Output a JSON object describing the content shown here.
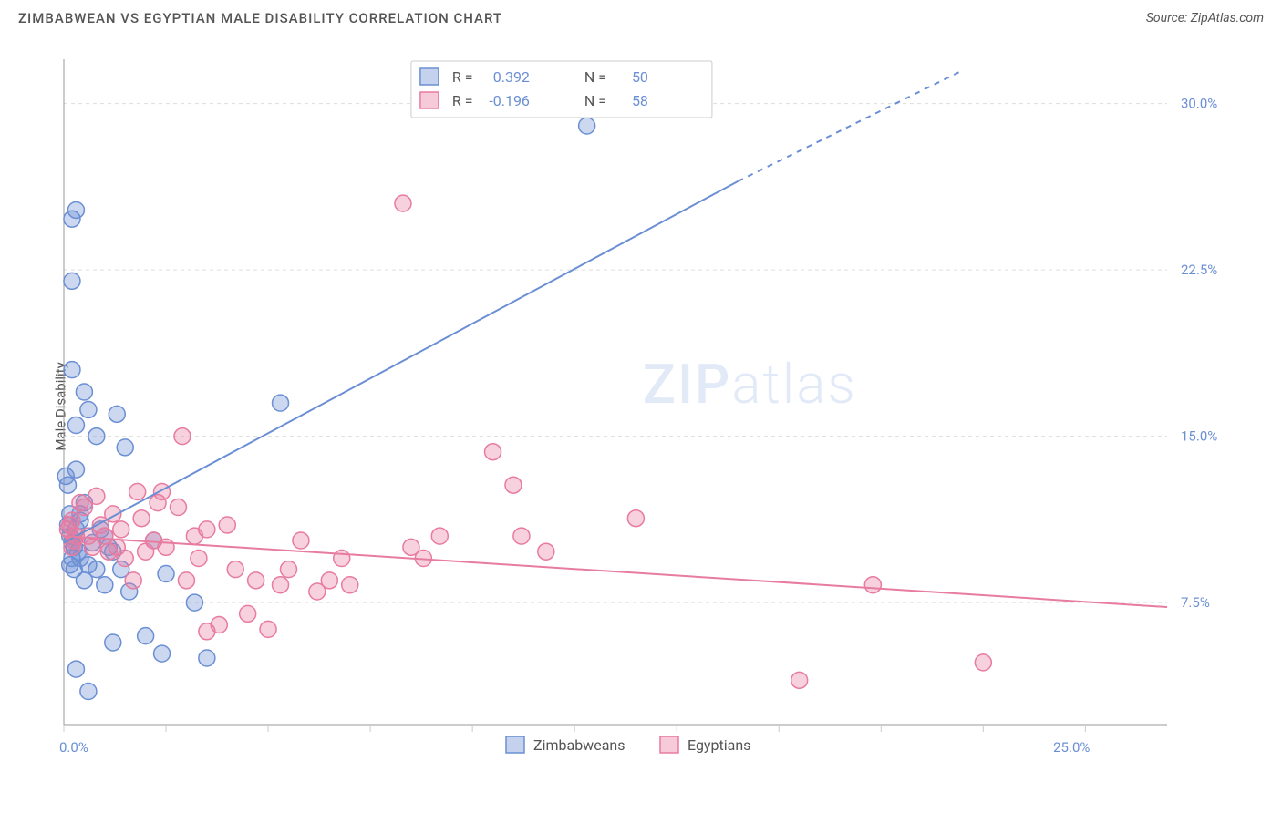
{
  "title": "ZIMBABWEAN VS EGYPTIAN MALE DISABILITY CORRELATION CHART",
  "source": "Source: ZipAtlas.com",
  "watermark": "ZIPatlas",
  "ylabel": "Male Disability",
  "chart": {
    "type": "scatter",
    "xlim": [
      0,
      27
    ],
    "ylim": [
      2,
      32
    ],
    "x_ticks": [
      0,
      2.5,
      5,
      7.5,
      10,
      12.5,
      15,
      17.5,
      20,
      22.5,
      25
    ],
    "x_tick_labels": {
      "0": "0.0%",
      "25": "25.0%"
    },
    "y_ticks": [
      7.5,
      15.0,
      22.5,
      30.0
    ],
    "y_tick_labels": [
      "7.5%",
      "15.0%",
      "22.5%",
      "30.0%"
    ],
    "background_color": "#ffffff",
    "grid_color": "#dddddd",
    "axis_color": "#999999",
    "tick_label_color": "#6b8fd4",
    "marker_radius": 9,
    "marker_stroke_width": 1.5,
    "marker_fill_opacity": 0.35,
    "series": [
      {
        "name": "Zimbabweans",
        "color": "#6b8fd4",
        "R": "0.392",
        "N": "50",
        "trend": {
          "x1": 0,
          "y1": 10.2,
          "x2": 16.5,
          "y2": 26.5,
          "extrap_x2": 22,
          "extrap_y2": 31.5
        },
        "points": [
          [
            0.1,
            11.0
          ],
          [
            0.2,
            10.2
          ],
          [
            0.15,
            10.5
          ],
          [
            0.3,
            10.8
          ],
          [
            0.4,
            11.2
          ],
          [
            0.35,
            9.8
          ],
          [
            0.25,
            10.3
          ],
          [
            0.1,
            12.8
          ],
          [
            0.05,
            13.2
          ],
          [
            0.2,
            18.0
          ],
          [
            0.3,
            15.5
          ],
          [
            0.5,
            17.0
          ],
          [
            0.6,
            16.2
          ],
          [
            0.8,
            15.0
          ],
          [
            1.3,
            16.0
          ],
          [
            1.5,
            14.5
          ],
          [
            0.2,
            24.8
          ],
          [
            0.3,
            25.2
          ],
          [
            0.2,
            22.0
          ],
          [
            0.15,
            9.2
          ],
          [
            0.25,
            9.0
          ],
          [
            0.4,
            9.5
          ],
          [
            0.6,
            9.2
          ],
          [
            0.8,
            9.0
          ],
          [
            0.5,
            8.5
          ],
          [
            1.0,
            8.3
          ],
          [
            1.2,
            9.8
          ],
          [
            1.4,
            9.0
          ],
          [
            1.0,
            10.5
          ],
          [
            1.1,
            10.0
          ],
          [
            0.9,
            10.8
          ],
          [
            0.7,
            10.2
          ],
          [
            1.6,
            8.0
          ],
          [
            2.0,
            6.0
          ],
          [
            2.4,
            5.2
          ],
          [
            2.5,
            8.8
          ],
          [
            3.2,
            7.5
          ],
          [
            3.5,
            5.0
          ],
          [
            0.6,
            3.5
          ],
          [
            1.2,
            5.7
          ],
          [
            2.2,
            10.3
          ],
          [
            0.15,
            11.5
          ],
          [
            0.3,
            13.5
          ],
          [
            0.5,
            12.0
          ],
          [
            0.3,
            4.5
          ],
          [
            5.3,
            16.5
          ],
          [
            12.8,
            29.0
          ],
          [
            0.4,
            11.5
          ],
          [
            0.2,
            9.5
          ],
          [
            0.25,
            10.0
          ]
        ]
      },
      {
        "name": "Egyptians",
        "color": "#e87ba0",
        "R": "-0.196",
        "N": "58",
        "trend": {
          "x1": 0,
          "y1": 10.5,
          "x2": 27,
          "y2": 7.3
        },
        "points": [
          [
            0.1,
            10.8
          ],
          [
            0.2,
            11.2
          ],
          [
            0.3,
            10.5
          ],
          [
            0.15,
            11.0
          ],
          [
            0.25,
            10.3
          ],
          [
            0.4,
            12.0
          ],
          [
            0.5,
            11.8
          ],
          [
            0.6,
            10.5
          ],
          [
            0.7,
            10.0
          ],
          [
            0.8,
            12.3
          ],
          [
            0.9,
            11.0
          ],
          [
            1.0,
            10.5
          ],
          [
            1.1,
            9.8
          ],
          [
            1.2,
            11.5
          ],
          [
            1.3,
            10.0
          ],
          [
            1.4,
            10.8
          ],
          [
            1.5,
            9.5
          ],
          [
            1.8,
            12.5
          ],
          [
            2.0,
            9.8
          ],
          [
            2.2,
            10.3
          ],
          [
            2.3,
            12.0
          ],
          [
            2.4,
            12.5
          ],
          [
            2.5,
            10.0
          ],
          [
            2.8,
            11.8
          ],
          [
            2.9,
            15.0
          ],
          [
            3.0,
            8.5
          ],
          [
            3.2,
            10.5
          ],
          [
            3.3,
            9.5
          ],
          [
            3.5,
            10.8
          ],
          [
            3.8,
            6.5
          ],
          [
            4.0,
            11.0
          ],
          [
            4.2,
            9.0
          ],
          [
            4.5,
            7.0
          ],
          [
            4.7,
            8.5
          ],
          [
            5.0,
            6.3
          ],
          [
            5.3,
            8.3
          ],
          [
            5.5,
            9.0
          ],
          [
            5.8,
            10.3
          ],
          [
            6.2,
            8.0
          ],
          [
            6.5,
            8.5
          ],
          [
            6.8,
            9.5
          ],
          [
            7.0,
            8.3
          ],
          [
            8.5,
            10.0
          ],
          [
            8.8,
            9.5
          ],
          [
            9.2,
            10.5
          ],
          [
            10.5,
            14.3
          ],
          [
            11.0,
            12.8
          ],
          [
            11.2,
            10.5
          ],
          [
            11.8,
            9.8
          ],
          [
            14.0,
            11.3
          ],
          [
            8.3,
            25.5
          ],
          [
            18.0,
            4.0
          ],
          [
            19.8,
            8.3
          ],
          [
            22.5,
            4.8
          ],
          [
            0.2,
            10.0
          ],
          [
            1.7,
            8.5
          ],
          [
            3.5,
            6.2
          ],
          [
            1.9,
            11.3
          ]
        ]
      }
    ],
    "bottom_legend": [
      {
        "label": "Zimbabweans",
        "color": "#6b8fd4"
      },
      {
        "label": "Egyptians",
        "color": "#e87ba0"
      }
    ]
  }
}
